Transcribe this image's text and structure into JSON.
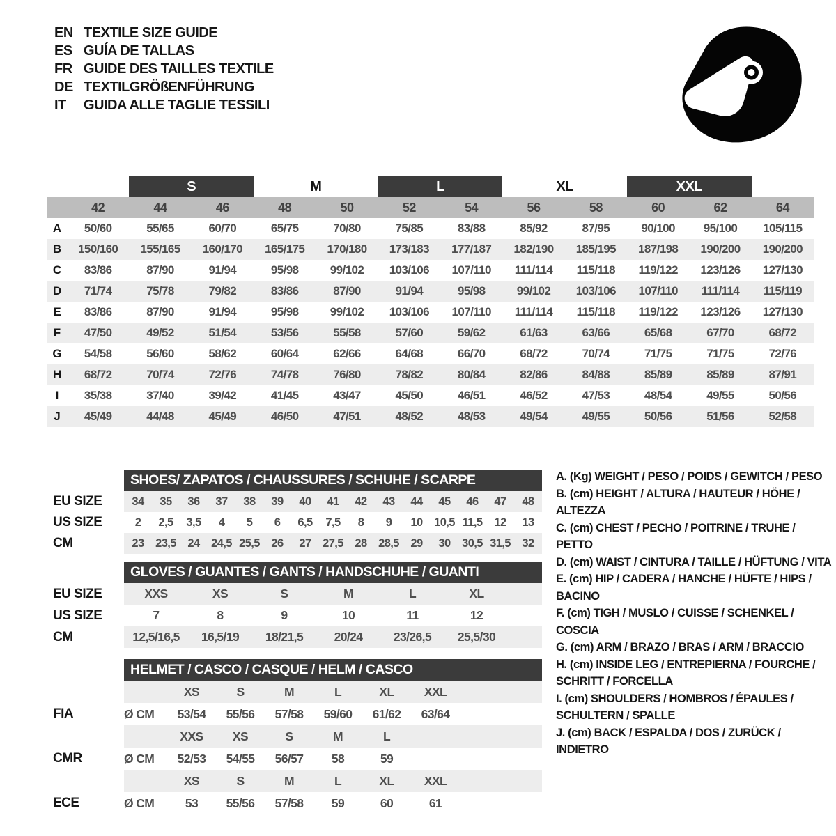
{
  "colors": {
    "header_bar": "#3b3b3b",
    "column_band": "#bdbdbd",
    "row_band": "#ededed",
    "value_text": "#4f4f4f",
    "icon_black": "#050505"
  },
  "languages": [
    {
      "code": "EN",
      "label": "TEXTILE SIZE GUIDE"
    },
    {
      "code": "ES",
      "label": "GUÍA DE TALLAS"
    },
    {
      "code": "FR",
      "label": "GUIDE DES TAILLES TEXTILE"
    },
    {
      "code": "DE",
      "label": "TEXTILGRÖßENFÜHRUNG"
    },
    {
      "code": "IT",
      "label": "GUIDA ALLE TAGLIE TESSILI"
    }
  ],
  "icon": {
    "name": "helmet-icon"
  },
  "main_table": {
    "groups": [
      {
        "label": "S",
        "dark": true
      },
      {
        "label": "M",
        "dark": false
      },
      {
        "label": "L",
        "dark": true
      },
      {
        "label": "XL",
        "dark": false
      },
      {
        "label": "XXL",
        "dark": true
      }
    ],
    "columns": [
      "42",
      "44",
      "46",
      "48",
      "50",
      "52",
      "54",
      "56",
      "58",
      "60",
      "62",
      "64"
    ],
    "rows": [
      {
        "label": "A",
        "values": [
          "50/60",
          "55/65",
          "60/70",
          "65/75",
          "70/80",
          "75/85",
          "83/88",
          "85/92",
          "87/95",
          "90/100",
          "95/100",
          "105/115"
        ]
      },
      {
        "label": "B",
        "values": [
          "150/160",
          "155/165",
          "160/170",
          "165/175",
          "170/180",
          "173/183",
          "177/187",
          "182/190",
          "185/195",
          "187/198",
          "190/200",
          "190/200"
        ]
      },
      {
        "label": "C",
        "values": [
          "83/86",
          "87/90",
          "91/94",
          "95/98",
          "99/102",
          "103/106",
          "107/110",
          "111/114",
          "115/118",
          "119/122",
          "123/126",
          "127/130"
        ]
      },
      {
        "label": "D",
        "values": [
          "71/74",
          "75/78",
          "79/82",
          "83/86",
          "87/90",
          "91/94",
          "95/98",
          "99/102",
          "103/106",
          "107/110",
          "111/114",
          "115/119"
        ]
      },
      {
        "label": "E",
        "values": [
          "83/86",
          "87/90",
          "91/94",
          "95/98",
          "99/102",
          "103/106",
          "107/110",
          "111/114",
          "115/118",
          "119/122",
          "123/126",
          "127/130"
        ]
      },
      {
        "label": "F",
        "values": [
          "47/50",
          "49/52",
          "51/54",
          "53/56",
          "55/58",
          "57/60",
          "59/62",
          "61/63",
          "63/66",
          "65/68",
          "67/70",
          "68/72"
        ]
      },
      {
        "label": "G",
        "values": [
          "54/58",
          "56/60",
          "58/62",
          "60/64",
          "62/66",
          "64/68",
          "66/70",
          "68/72",
          "70/74",
          "71/75",
          "71/75",
          "72/76"
        ]
      },
      {
        "label": "H",
        "values": [
          "68/72",
          "70/74",
          "72/76",
          "74/78",
          "76/80",
          "78/82",
          "80/84",
          "82/86",
          "84/88",
          "85/89",
          "85/89",
          "87/91"
        ]
      },
      {
        "label": "I",
        "values": [
          "35/38",
          "37/40",
          "39/42",
          "41/45",
          "43/47",
          "45/50",
          "46/51",
          "46/52",
          "47/53",
          "48/54",
          "49/55",
          "50/56"
        ]
      },
      {
        "label": "J",
        "values": [
          "45/49",
          "44/48",
          "45/49",
          "46/50",
          "47/51",
          "48/52",
          "48/53",
          "49/54",
          "49/55",
          "50/56",
          "51/56",
          "52/58"
        ]
      }
    ]
  },
  "shoes": {
    "title": "SHOES/ ZAPATOS / CHAUSSURES / SCHUHE / SCARPE",
    "rows": [
      {
        "label": "EU SIZE",
        "band": true,
        "values": [
          "34",
          "35",
          "36",
          "37",
          "38",
          "39",
          "40",
          "41",
          "42",
          "43",
          "44",
          "45",
          "46",
          "47",
          "48"
        ]
      },
      {
        "label": "US SIZE",
        "band": false,
        "values": [
          "2",
          "2,5",
          "3,5",
          "4",
          "5",
          "6",
          "6,5",
          "7,5",
          "8",
          "9",
          "10",
          "10,5",
          "11,5",
          "12",
          "13"
        ]
      },
      {
        "label": "CM",
        "band": true,
        "values": [
          "23",
          "23,5",
          "24",
          "24,5",
          "25,5",
          "26",
          "27",
          "27,5",
          "28",
          "28,5",
          "29",
          "30",
          "30,5",
          "31,5",
          "32"
        ]
      }
    ]
  },
  "gloves": {
    "title": "GLOVES / GUANTES / GANTS / HANDSCHUHE / GUANTI",
    "rows": [
      {
        "label": "EU SIZE",
        "band": true,
        "values": [
          "XXS",
          "XS",
          "S",
          "M",
          "L",
          "XL"
        ]
      },
      {
        "label": "US SIZE",
        "band": false,
        "values": [
          "7",
          "8",
          "9",
          "10",
          "11",
          "12"
        ]
      },
      {
        "label": "CM",
        "band": true,
        "values": [
          "12,5/16,5",
          "16,5/19",
          "18/21,5",
          "20/24",
          "23/26,5",
          "25,5/30"
        ]
      }
    ]
  },
  "helmet": {
    "title": "HELMET / CASCO / CASQUE / HELM / CASCO",
    "rows": [
      {
        "left_label": "",
        "band": true,
        "prefix": "",
        "values": [
          "XS",
          "S",
          "M",
          "L",
          "XL",
          "XXL"
        ]
      },
      {
        "left_label": "FIA",
        "band": false,
        "prefix": "Ø CM",
        "values": [
          "53/54",
          "55/56",
          "57/58",
          "59/60",
          "61/62",
          "63/64"
        ]
      },
      {
        "left_label": "",
        "band": true,
        "prefix": "",
        "values": [
          "XXS",
          "XS",
          "S",
          "M",
          "L"
        ]
      },
      {
        "left_label": "CMR",
        "band": false,
        "prefix": "Ø CM",
        "values": [
          "52/53",
          "54/55",
          "56/57",
          "58",
          "59"
        ]
      },
      {
        "left_label": "",
        "band": true,
        "prefix": "",
        "values": [
          "XS",
          "S",
          "M",
          "L",
          "XL",
          "XXL"
        ]
      },
      {
        "left_label": "ECE",
        "band": false,
        "prefix": "Ø CM",
        "values": [
          "53",
          "55/56",
          "57/58",
          "59",
          "60",
          "61"
        ]
      }
    ]
  },
  "legend": {
    "items": [
      "A. (Kg) WEIGHT / PESO / POIDS / GEWITCH / PESO",
      "B. (cm) HEIGHT / ALTURA / HAUTEUR / HÖHE / ALTEZZA",
      "C. (cm) CHEST / PECHO / POITRINE / TRUHE / PETTO",
      "D. (cm) WAIST / CINTURA / TAILLE / HÜFTUNG / VITA",
      "E. (cm) HIP / CADERA / HANCHE / HÜFTE / HIPS /  BACINO",
      "F. (cm) TIGH / MUSLO / CUISSE / SCHENKEL / COSCIA",
      "G. (cm) ARM / BRAZO / BRAS / ARM / BRACCIO",
      "H. (cm) INSIDE LEG / ENTREPIERNA / FOURCHE / SCHRITT / FORCELLA",
      "I. (cm) SHOULDERS / HOMBROS / ÉPAULES / SCHULTERN / SPALLE",
      "J. (cm) BACK / ESPALDA / DOS / ZURÜCK / INDIETRO"
    ]
  }
}
